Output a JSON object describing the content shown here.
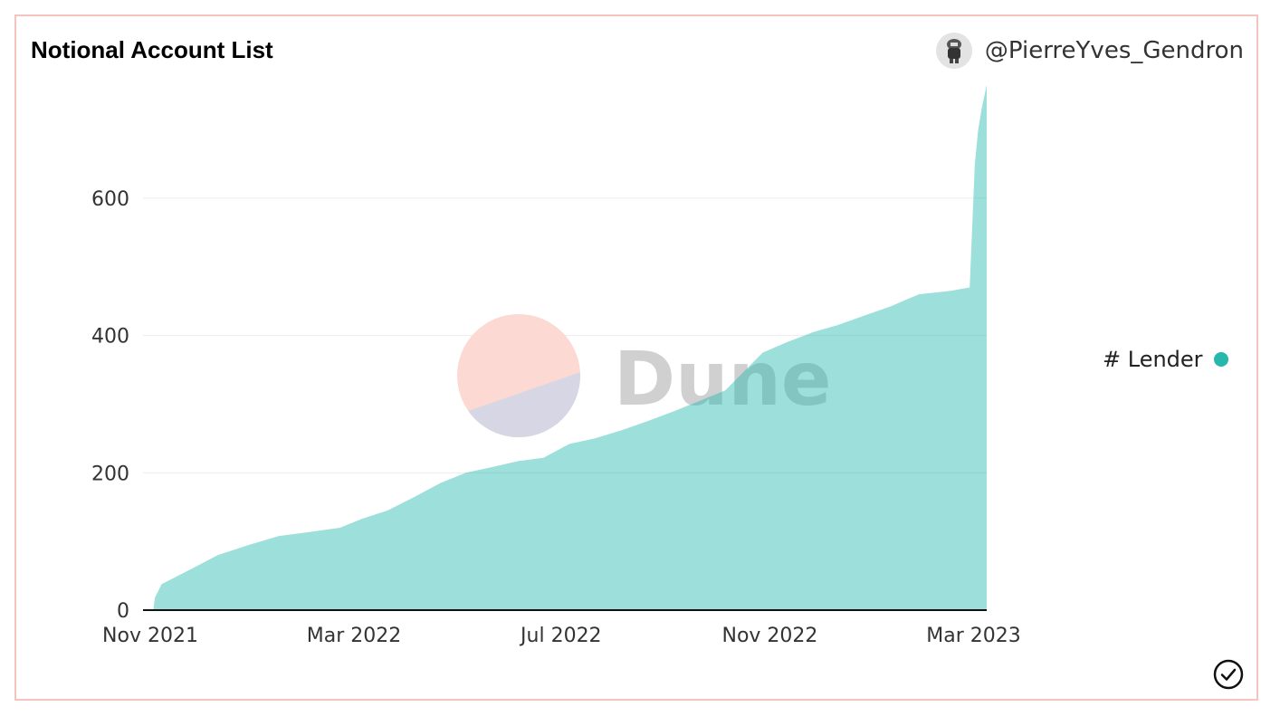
{
  "header": {
    "title": "Notional Account List",
    "author": "@PierreYves_Gendron"
  },
  "watermark": {
    "text": "Dune"
  },
  "colors": {
    "series": "#26b7ad",
    "border": "#f4c5be",
    "watermark_top": "#fcd9d2",
    "watermark_bottom": "#d6d6e4"
  },
  "icons": {
    "avatar": "user-avatar-icon",
    "check": "check-circle-icon"
  },
  "chart_data": {
    "type": "area",
    "title": "Notional Account List",
    "xlabel": "",
    "ylabel": "",
    "x_ticks": [
      "Nov 2021",
      "Mar 2022",
      "Jul 2022",
      "Nov 2022",
      "Mar 2023"
    ],
    "y_ticks": [
      0,
      200,
      400,
      600
    ],
    "ylim": [
      0,
      770
    ],
    "xlim": [
      "2021-11-01",
      "2023-03-15"
    ],
    "grid": true,
    "legend_position": "right",
    "series": [
      {
        "name": "# Lender",
        "color": "#26b7ad",
        "points": [
          [
            "2021-11-07",
            0
          ],
          [
            "2021-11-08",
            18
          ],
          [
            "2021-11-12",
            38
          ],
          [
            "2021-11-20",
            48
          ],
          [
            "2021-12-01",
            62
          ],
          [
            "2021-12-15",
            80
          ],
          [
            "2022-01-01",
            94
          ],
          [
            "2022-01-20",
            108
          ],
          [
            "2022-02-05",
            113
          ],
          [
            "2022-02-25",
            120
          ],
          [
            "2022-03-10",
            133
          ],
          [
            "2022-03-25",
            145
          ],
          [
            "2022-04-10",
            165
          ],
          [
            "2022-04-25",
            185
          ],
          [
            "2022-05-10",
            200
          ],
          [
            "2022-05-25",
            208
          ],
          [
            "2022-06-10",
            217
          ],
          [
            "2022-06-25",
            222
          ],
          [
            "2022-07-10",
            242
          ],
          [
            "2022-07-25",
            250
          ],
          [
            "2022-08-10",
            262
          ],
          [
            "2022-08-25",
            275
          ],
          [
            "2022-09-10",
            290
          ],
          [
            "2022-09-25",
            305
          ],
          [
            "2022-10-10",
            320
          ],
          [
            "2022-10-20",
            345
          ],
          [
            "2022-11-01",
            375
          ],
          [
            "2022-11-15",
            390
          ],
          [
            "2022-12-01",
            405
          ],
          [
            "2022-12-15",
            415
          ],
          [
            "2023-01-01",
            430
          ],
          [
            "2023-01-15",
            442
          ],
          [
            "2023-02-01",
            460
          ],
          [
            "2023-02-20",
            465
          ],
          [
            "2023-03-03",
            470
          ],
          [
            "2023-03-04",
            530
          ],
          [
            "2023-03-06",
            650
          ],
          [
            "2023-03-08",
            700
          ],
          [
            "2023-03-10",
            730
          ],
          [
            "2023-03-13",
            765
          ]
        ]
      }
    ]
  }
}
